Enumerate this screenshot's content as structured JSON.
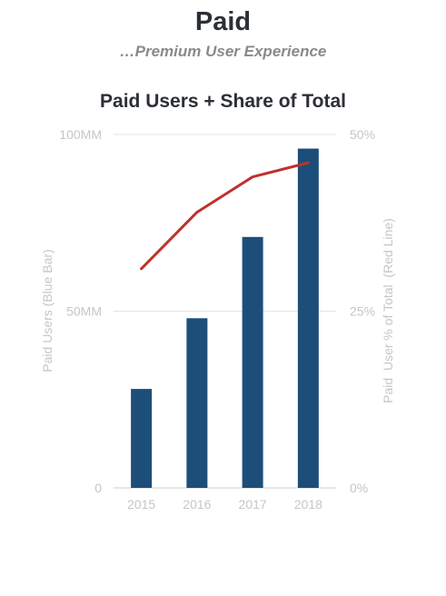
{
  "page": {
    "title": "Paid",
    "subtitle": "…Premium User Experience"
  },
  "colors": {
    "bar": "#1d4e79",
    "line": "#c0302d",
    "text_muted": "#c6c6c6"
  },
  "chart_data": {
    "type": "bar",
    "title": "Paid Users + Share of Total",
    "categories": [
      "2015",
      "2016",
      "2017",
      "2018"
    ],
    "series": [
      {
        "name": "Paid Users (Blue Bar)",
        "type": "bar",
        "axis": "left",
        "values": [
          28,
          48,
          71,
          96
        ]
      },
      {
        "name": "Paid  User % of Total  (Red Line)",
        "type": "line",
        "axis": "right",
        "values": [
          31,
          39,
          44,
          46
        ]
      }
    ],
    "ylabel_left": "Paid Users (Blue Bar)",
    "ylabel_right": "Paid  User % of Total  (Red Line)",
    "ylim_left": [
      0,
      100
    ],
    "ylim_right": [
      0,
      50
    ],
    "y_ticks_left": [
      {
        "value": 0,
        "label": "0"
      },
      {
        "value": 50,
        "label": "50MM"
      },
      {
        "value": 100,
        "label": "100MM"
      }
    ],
    "y_ticks_right": [
      {
        "value": 0,
        "label": "0%"
      },
      {
        "value": 25,
        "label": "25%"
      },
      {
        "value": 50,
        "label": "50%"
      }
    ],
    "grid": true,
    "legend": "none"
  }
}
